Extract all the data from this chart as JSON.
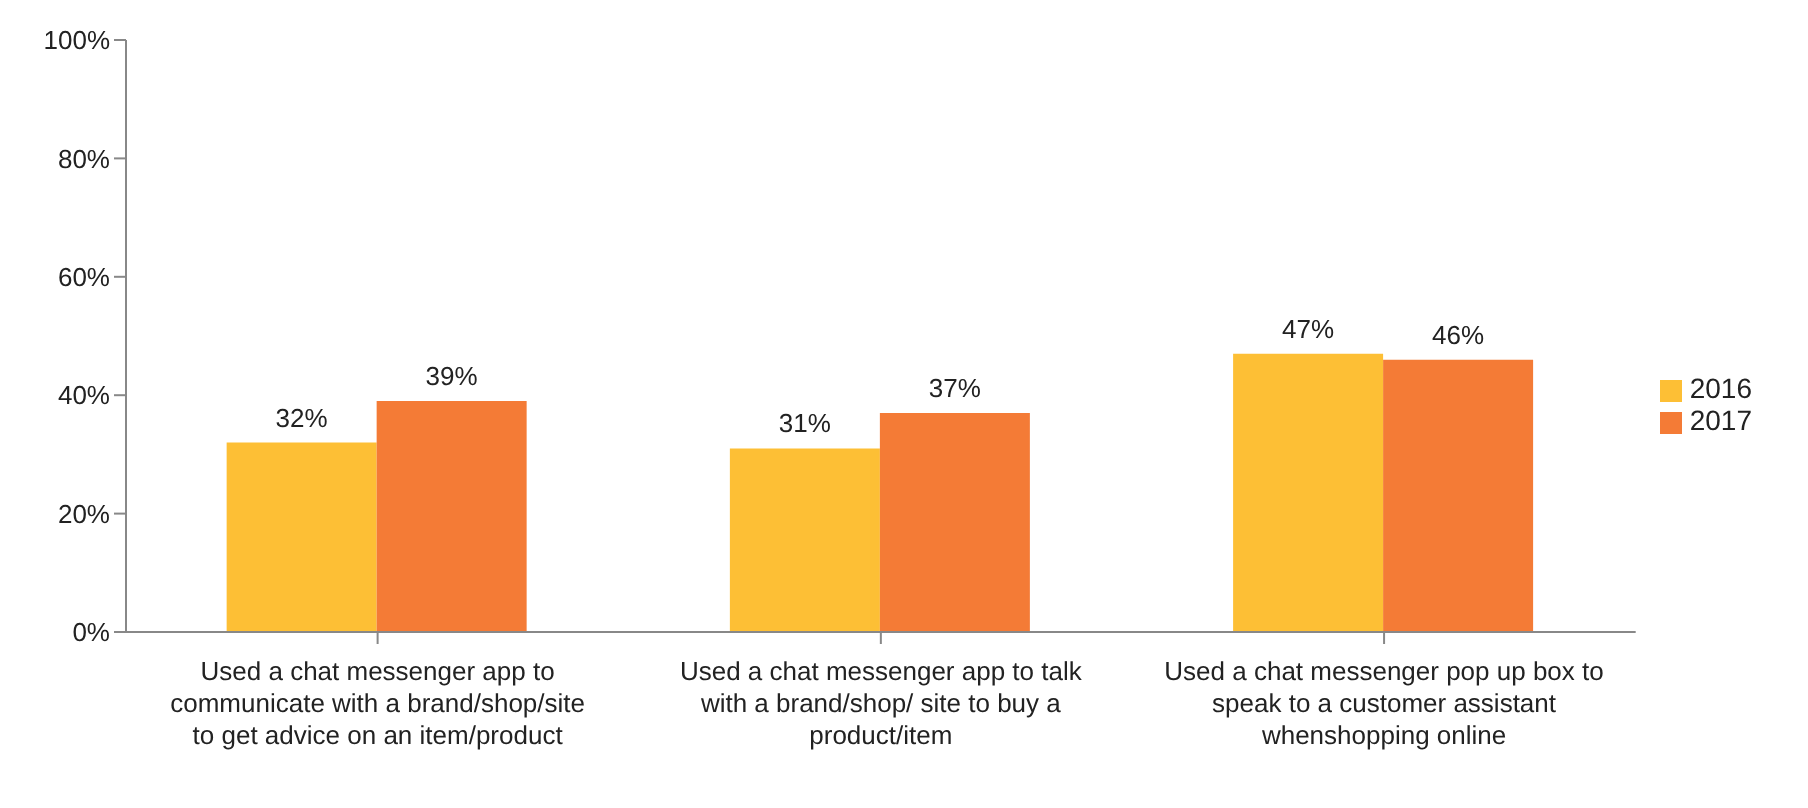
{
  "chart_data": {
    "type": "bar",
    "categories": [
      "Used a chat messenger app to communicate with a brand/shop/site to get advice on an item/product",
      "Used a chat messenger app to talk with a brand/shop/ site to buy a product/item",
      "Used a chat messenger pop up box to speak to a customer assistant whenshopping online"
    ],
    "series": [
      {
        "name": "2016",
        "color": "#fdbf35",
        "values": [
          32,
          31,
          47
        ]
      },
      {
        "name": "2017",
        "color": "#f47b36",
        "values": [
          39,
          37,
          46
        ]
      }
    ],
    "ylim": [
      0,
      100
    ],
    "yticks": [
      {
        "value": 0,
        "label": "0%"
      },
      {
        "value": 20,
        "label": "20%"
      },
      {
        "value": 40,
        "label": "40%"
      },
      {
        "value": 60,
        "label": "60%"
      },
      {
        "value": 80,
        "label": "80%"
      },
      {
        "value": 100,
        "label": "100%"
      }
    ],
    "value_labels": [
      [
        "32%",
        "31%",
        "47%"
      ],
      [
        "39%",
        "37%",
        "46%"
      ]
    ],
    "legend": "right",
    "grid": false
  }
}
